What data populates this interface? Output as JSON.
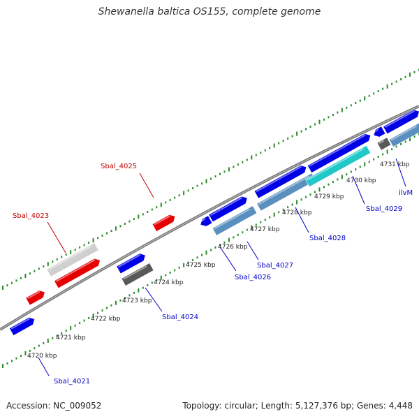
{
  "title": "Shewanella baltica OS155, complete genome",
  "footer": {
    "accession": "Accession: NC_009052",
    "summary": "Topology: circular; Length: 5,127,376 bp; Genes: 4,448"
  },
  "colors": {
    "forward_cds": "#0000e6",
    "rna": "#e60000",
    "pseudo": "#cfcfcf",
    "dark_gene": "#595959",
    "steel_gene": "#5a8fc0",
    "cyan_gene": "#20c8c8",
    "backbone": "#7a7a7a",
    "ticks": "#2a8a2a",
    "label_blue": "#0000c8",
    "label_red": "#c00000"
  },
  "kbp_ticks": [
    "4720 kbp",
    "4721 kbp",
    "4722 kbp",
    "4723 kbp",
    "4724 kbp",
    "4725 kbp",
    "4726 kbp",
    "4727 kbp",
    "4728 kbp",
    "4729 kbp",
    "4730 kbp",
    "4731 kbp"
  ],
  "gene_labels": [
    {
      "text": "Sbal_4021",
      "color": "blue"
    },
    {
      "text": "Sbal_4023",
      "color": "red"
    },
    {
      "text": "Sbal_4024",
      "color": "blue"
    },
    {
      "text": "Sbal_4025",
      "color": "red"
    },
    {
      "text": "Sbal_4026",
      "color": "blue"
    },
    {
      "text": "Sbal_4027",
      "color": "blue"
    },
    {
      "text": "Sbal_4028",
      "color": "blue"
    },
    {
      "text": "Sbal_4029",
      "color": "blue"
    },
    {
      "text": "ilvM",
      "color": "blue"
    }
  ]
}
